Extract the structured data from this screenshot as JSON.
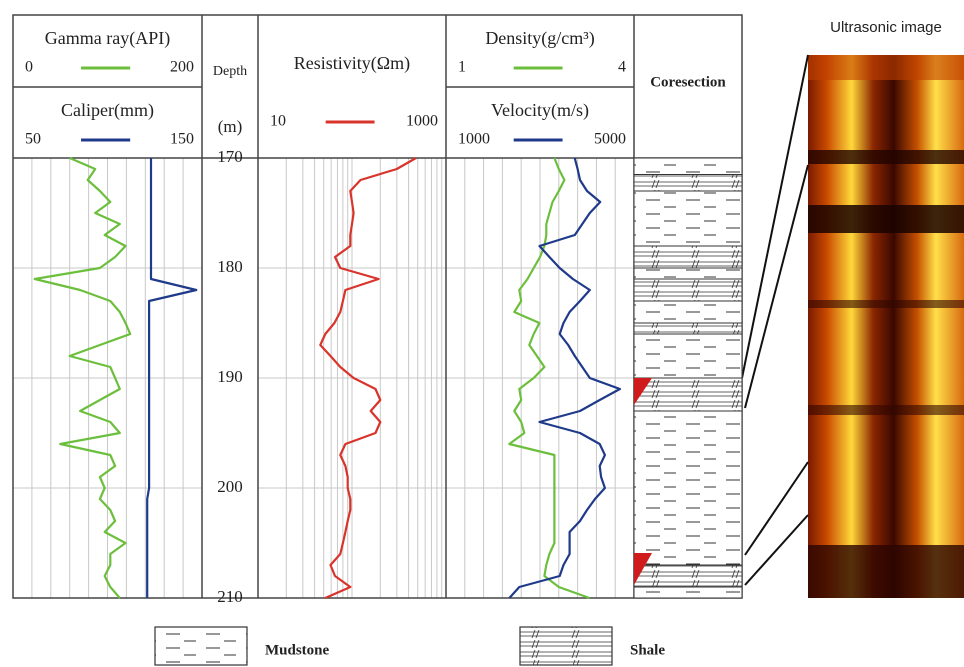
{
  "chart_data": {
    "type": "well-log",
    "y_title": "Depth",
    "y_unit": "(m)",
    "ylim": [
      170,
      210
    ],
    "yticks": [
      170,
      180,
      190,
      200,
      210
    ],
    "grid": true,
    "depth": [
      170,
      171,
      172,
      173,
      174,
      175,
      176,
      177,
      178,
      179,
      180,
      181,
      182,
      183,
      184,
      185,
      186,
      187,
      188,
      189,
      190,
      191,
      192,
      193,
      194,
      195,
      196,
      197,
      198,
      199,
      200,
      201,
      202,
      203,
      204,
      205,
      206,
      207,
      208,
      209,
      210
    ],
    "tracks": [
      {
        "series": [
          {
            "name": "Gamma ray(API)",
            "color": "#6cbf3c",
            "xlim": [
              0,
              200
            ],
            "values": [
              60,
              87,
              79,
              92,
              103,
              87,
              113,
              97,
              119,
              108,
              92,
              23,
              71,
              103,
              113,
              119,
              124,
              92,
              60,
              103,
              108,
              113,
              92,
              71,
              103,
              113,
              50,
              103,
              108,
              92,
              97,
              92,
              103,
              108,
              97,
              119,
              103,
              103,
              97,
              103,
              113
            ]
          },
          {
            "name": "Caliper(mm)",
            "color": "#1f3a8a",
            "xlim": [
              50,
              150
            ],
            "values": [
              123,
              123,
              123,
              123,
              123,
              123,
              123,
              123,
              123,
              123,
              123,
              123,
              147,
              122,
              122,
              122,
              122,
              122,
              122,
              122,
              122,
              122,
              122,
              122,
              122,
              122,
              122,
              122,
              122,
              122,
              122,
              121,
              121,
              121,
              121,
              121,
              121,
              121,
              121,
              121,
              121
            ]
          }
        ]
      },
      {
        "series": [
          {
            "name": "Resistivity(Ωm)",
            "color": "#d9342b",
            "xlim": [
              10,
              1000
            ],
            "log": true,
            "values": [
              479,
              300,
              123,
              96,
              100,
              104,
              100,
              96,
              96,
              66,
              75,
              192,
              85,
              80,
              75,
              65,
              52,
              46,
              59,
              75,
              104,
              178,
              200,
              158,
              200,
              178,
              85,
              75,
              85,
              90,
              90,
              96,
              96,
              90,
              85,
              80,
              75,
              59,
              66,
              96,
              52
            ]
          }
        ]
      },
      {
        "series": [
          {
            "name": "Density(g/cm³)",
            "color": "#6cbf3c",
            "xlim": [
              1,
              4
            ],
            "values": [
              2.73,
              2.8,
              2.89,
              2.8,
              2.7,
              2.65,
              2.6,
              2.6,
              2.57,
              2.5,
              2.4,
              2.3,
              2.17,
              2.2,
              2.09,
              2.49,
              2.4,
              2.33,
              2.45,
              2.57,
              2.4,
              2.17,
              2.2,
              2.09,
              2.2,
              2.25,
              2.01,
              2.73,
              2.73,
              2.73,
              2.73,
              2.73,
              2.73,
              2.73,
              2.73,
              2.73,
              2.65,
              2.6,
              2.57,
              2.8,
              3.29
            ]
          },
          {
            "name": "Velocity(m/s)",
            "color": "#1f3a8a",
            "xlim": [
              1000,
              5000
            ],
            "values": [
              3738,
              3800,
              3850,
              4000,
              4280,
              4060,
              3900,
              3740,
              2990,
              3200,
              3420,
              3700,
              4060,
              3850,
              3630,
              3500,
              3420,
              3600,
              3740,
              3900,
              4060,
              4700,
              4270,
              3850,
              2990,
              3850,
              4270,
              4380,
              4270,
              4300,
              4380,
              4170,
              4000,
              3850,
              3630,
              3630,
              3630,
              3500,
              3420,
              2560,
              2350
            ]
          }
        ]
      }
    ],
    "coresection": {
      "title": "Coresection",
      "lithologies": [
        {
          "name": "Mudstone",
          "intervals": [
            [
              170,
              171.5
            ],
            [
              173,
              178
            ],
            [
              180,
              181
            ],
            [
              183,
              185
            ],
            [
              186,
              190
            ],
            [
              193,
              207
            ],
            [
              209,
              210
            ]
          ]
        },
        {
          "name": "Shale",
          "intervals": [
            [
              171.5,
              173
            ],
            [
              178,
              180
            ],
            [
              181,
              183
            ],
            [
              185,
              186
            ],
            [
              190,
              193
            ],
            [
              207,
              209
            ]
          ]
        }
      ]
    }
  },
  "image": {
    "title": "Ultrasonic image"
  }
}
